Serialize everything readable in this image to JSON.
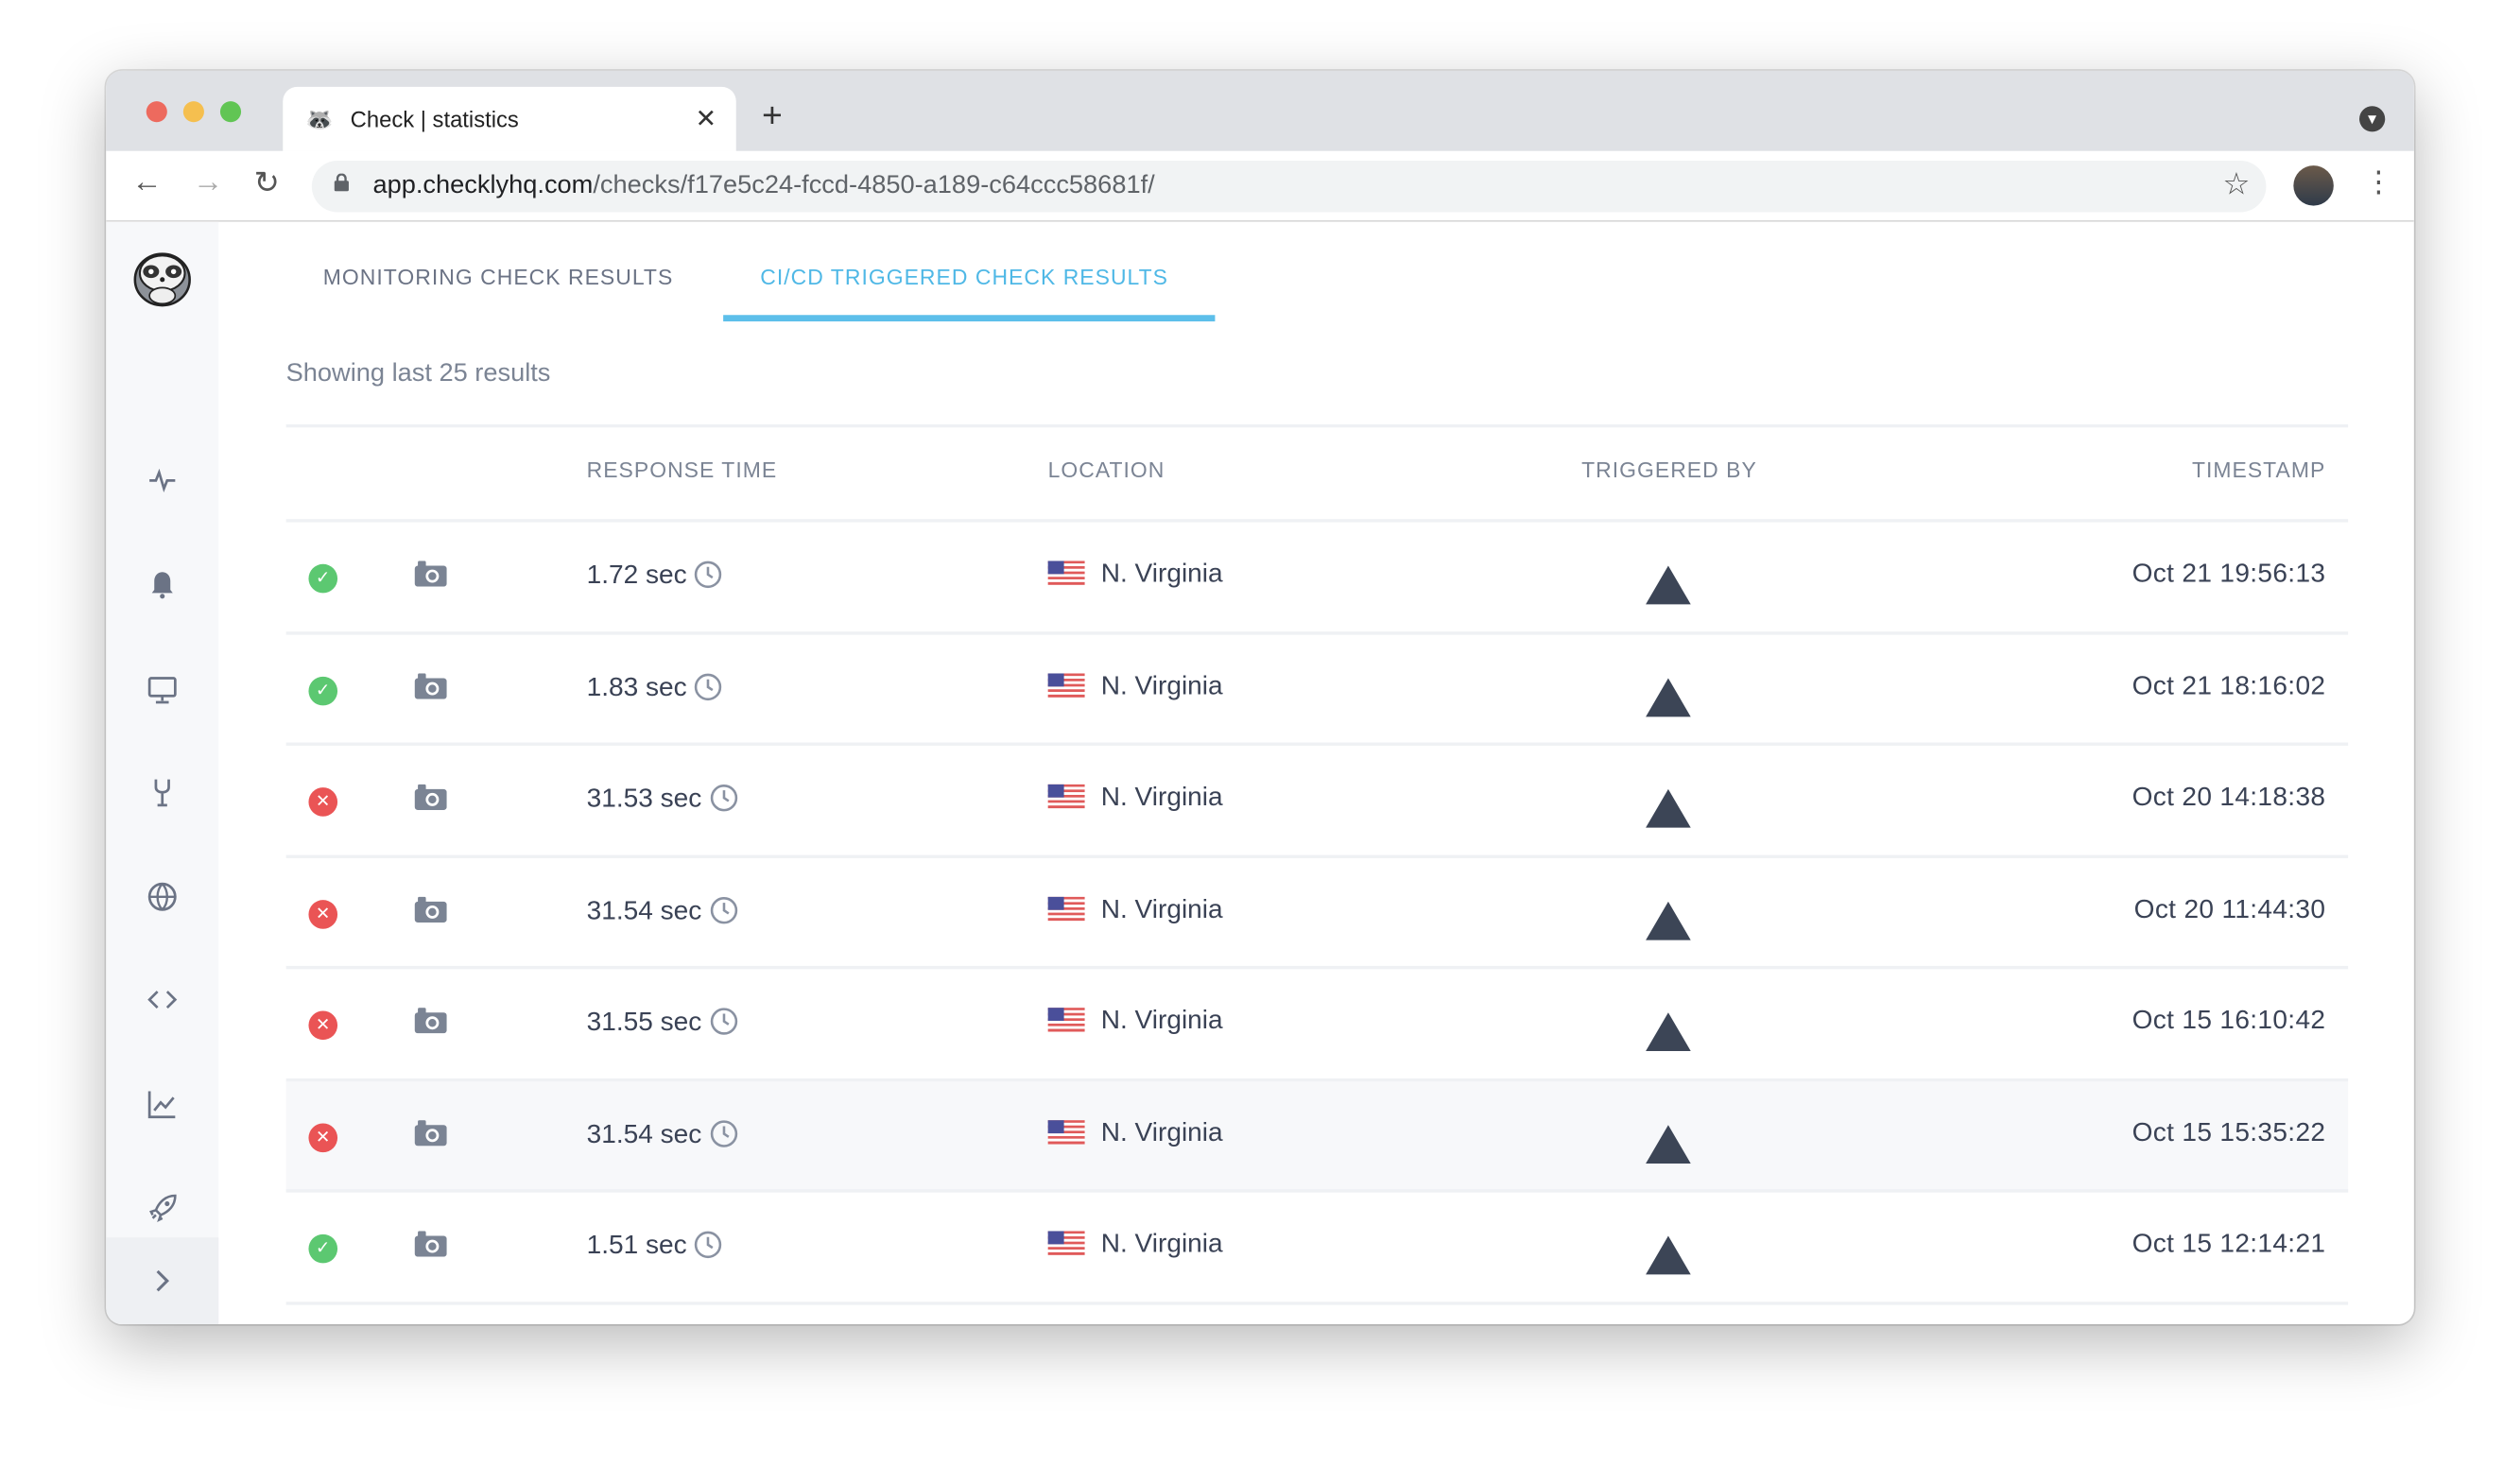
{
  "browser": {
    "tab_title": "Check | statistics",
    "url_host": "app.checklyhq.com",
    "url_path": "/checks/f17e5c24-fccd-4850-a189-c64ccc58681f/",
    "colors": {
      "close": "#ed6a5e",
      "minimize": "#f5bf4f",
      "maximize": "#61c554"
    }
  },
  "sidebar": {
    "items": [
      {
        "icon": "activity-icon"
      },
      {
        "icon": "bell-icon"
      },
      {
        "icon": "monitor-icon"
      },
      {
        "icon": "tools-icon"
      },
      {
        "icon": "globe-icon"
      },
      {
        "icon": "code-icon"
      },
      {
        "icon": "chart-icon"
      },
      {
        "icon": "rocket-icon"
      }
    ],
    "expand_icon": "chevron-right-icon"
  },
  "tabs": [
    {
      "label": "MONITORING CHECK RESULTS",
      "active": false
    },
    {
      "label": "CI/CD TRIGGERED CHECK RESULTS",
      "active": true
    }
  ],
  "accent_color": "#5dbfea",
  "summary": "Showing last 25 results",
  "table": {
    "headers": {
      "response_time": "RESPONSE TIME",
      "location": "LOCATION",
      "triggered_by": "TRIGGERED BY",
      "timestamp": "TIMESTAMP"
    },
    "rows": [
      {
        "status": "pass",
        "response": "1.72 sec",
        "location": "N. Virginia",
        "timestamp": "Oct 21 19:56:13"
      },
      {
        "status": "pass",
        "response": "1.83 sec",
        "location": "N. Virginia",
        "timestamp": "Oct 21 18:16:02"
      },
      {
        "status": "fail",
        "response": "31.53 sec",
        "location": "N. Virginia",
        "timestamp": "Oct 20 14:18:38"
      },
      {
        "status": "fail",
        "response": "31.54 sec",
        "location": "N. Virginia",
        "timestamp": "Oct 20 11:44:30"
      },
      {
        "status": "fail",
        "response": "31.55 sec",
        "location": "N. Virginia",
        "timestamp": "Oct 15 16:10:42"
      },
      {
        "status": "fail",
        "response": "31.54 sec",
        "location": "N. Virginia",
        "timestamp": "Oct 15 15:35:22"
      },
      {
        "status": "pass",
        "response": "1.51 sec",
        "location": "N. Virginia",
        "timestamp": "Oct 15 12:14:21"
      }
    ],
    "status_colors": {
      "pass": "#5cc871",
      "fail": "#ea5455"
    }
  }
}
